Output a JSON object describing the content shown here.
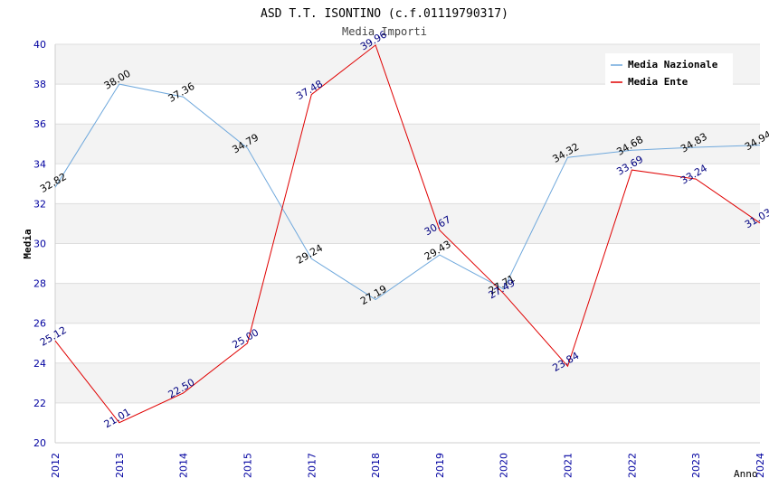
{
  "chart_data": {
    "type": "line",
    "title": "ASD T.T. ISONTINO (c.f.01119790317)",
    "subtitle": "Media Importi",
    "xlabel": "Anno",
    "ylabel": "Media",
    "categories": [
      "2012",
      "2013",
      "2014",
      "2015",
      "2017",
      "2018",
      "2019",
      "2020",
      "2021",
      "2022",
      "2023",
      "2024"
    ],
    "ylim": [
      20,
      40
    ],
    "yticks": [
      "20",
      "22",
      "24",
      "26",
      "28",
      "30",
      "32",
      "34",
      "36",
      "38",
      "40"
    ],
    "grid": true,
    "legend_position": "top-right",
    "series": [
      {
        "name": "Media Nazionale",
        "color": "#6fa8dc",
        "label_color": "#000000",
        "values": [
          32.82,
          38.0,
          37.36,
          34.79,
          29.24,
          27.19,
          29.43,
          27.71,
          34.32,
          34.68,
          34.83,
          34.94
        ],
        "labels": [
          "32.82",
          "38.00",
          "37.36",
          "34.79",
          "29.24",
          "27.19",
          "29.43",
          "27.71",
          "34.32",
          "34.68",
          "34.83",
          "34.94"
        ]
      },
      {
        "name": "Media Ente",
        "color": "#e00000",
        "label_color": "#000080",
        "values": [
          25.12,
          21.01,
          22.5,
          25.0,
          37.48,
          39.96,
          30.67,
          27.49,
          23.84,
          33.69,
          33.24,
          31.03
        ],
        "labels": [
          "25.12",
          "21.01",
          "22.50",
          "25.00",
          "37.48",
          "39.96",
          "30.67",
          "27.49",
          "23.84",
          "33.69",
          "33.24",
          "31.03"
        ]
      }
    ]
  }
}
